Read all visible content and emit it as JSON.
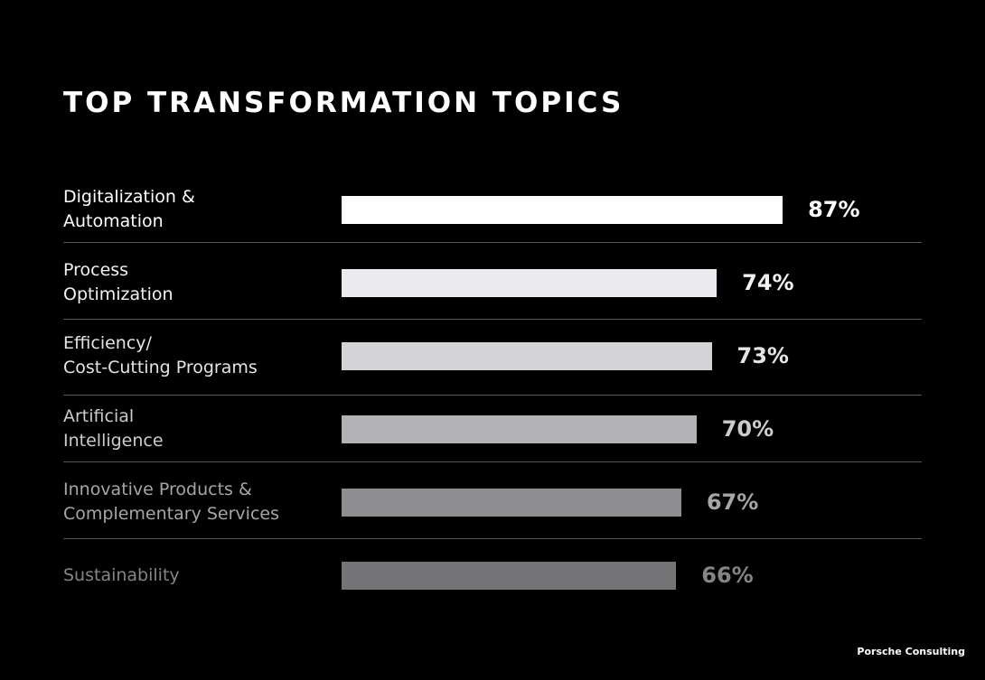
{
  "chart_data": {
    "type": "bar",
    "orientation": "horizontal",
    "title": "TOP TRANSFORMATION TOPICS",
    "categories": [
      "Digitalization &\nAutomation",
      "Process\nOptimization",
      "Efficiency/\nCost-Cutting Programs",
      "Artificial\nIntelligence",
      "Innovative Products &\nComplementary Services",
      "Sustainability"
    ],
    "values": [
      87,
      74,
      73,
      70,
      67,
      66
    ],
    "value_labels": [
      "87%",
      "74%",
      "73%",
      "70%",
      "67%",
      "66%"
    ],
    "colors": [
      "#ffffff",
      "#ebebef",
      "#d4d4d6",
      "#b2b2b4",
      "#8e8e90",
      "#747476"
    ],
    "source": "Porsche Consulting"
  }
}
